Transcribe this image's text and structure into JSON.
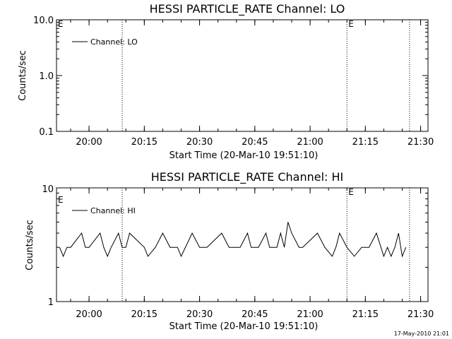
{
  "footer_timestamp": "17-May-2010 21:01",
  "x_ticks": [
    "20:00",
    "20:15",
    "20:30",
    "20:45",
    "21:00",
    "21:15",
    "21:30"
  ],
  "chart_data": [
    {
      "type": "line",
      "title": "HESSI PARTICLE_RATE Channel: LO",
      "xlabel": "Start Time (20-Mar-10 19:51:10)",
      "ylabel": "Counts/sec",
      "y_scale": "log",
      "ylim": [
        0.1,
        10.0
      ],
      "y_ticks": [
        "10.0",
        "1.0",
        "0.1"
      ],
      "x_range": [
        "19:51:10",
        "21:32:00"
      ],
      "legend": "top-left",
      "series": [
        {
          "name": "Channel: LO",
          "x": [],
          "values": []
        }
      ],
      "event_lines": [
        {
          "time": "20:09",
          "label": ""
        },
        {
          "time": "21:10",
          "label": "E"
        },
        {
          "time": "21:27",
          "label": ""
        }
      ],
      "edge_label": "E"
    },
    {
      "type": "line",
      "title": "HESSI PARTICLE_RATE Channel: HI",
      "xlabel": "Start Time (20-Mar-10 19:51:10)",
      "ylabel": "Counts/sec",
      "y_scale": "log",
      "ylim": [
        1,
        10
      ],
      "y_ticks": [
        "10",
        "1"
      ],
      "x_range": [
        "19:51:10",
        "21:32:00"
      ],
      "legend": "top-left",
      "series": [
        {
          "name": "Channel: HI",
          "x": [
            "19:52",
            "19:53",
            "19:54",
            "19:55",
            "19:58",
            "19:59",
            "20:00",
            "20:03",
            "20:04",
            "20:05",
            "20:06",
            "20:08",
            "20:09",
            "20:10",
            "20:11",
            "20:15",
            "20:16",
            "20:18",
            "20:20",
            "20:22",
            "20:24",
            "20:25",
            "20:28",
            "20:30",
            "20:32",
            "20:36",
            "20:38",
            "20:41",
            "20:43",
            "20:44",
            "20:46",
            "20:48",
            "20:49",
            "20:51",
            "20:52",
            "20:53",
            "20:54",
            "20:55",
            "20:57",
            "20:58",
            "21:02",
            "21:04",
            "21:06",
            "21:07",
            "21:08",
            "21:10",
            "21:12",
            "21:14",
            "21:16",
            "21:18",
            "21:20",
            "21:21",
            "21:22",
            "21:23",
            "21:24",
            "21:25",
            "21:26"
          ],
          "values": [
            3,
            2.5,
            3,
            3,
            4,
            3,
            3,
            4,
            3,
            2.5,
            3,
            4,
            3,
            3,
            4,
            3,
            2.5,
            3,
            4,
            3,
            3,
            2.5,
            4,
            3,
            3,
            4,
            3,
            3,
            4,
            3,
            3,
            4,
            3,
            3,
            4,
            3,
            5,
            4,
            3,
            3,
            4,
            3,
            2.5,
            3,
            4,
            3,
            2.5,
            3,
            3,
            4,
            2.5,
            3,
            2.5,
            3,
            4,
            2.5,
            3
          ]
        }
      ],
      "event_lines": [
        {
          "time": "20:09",
          "label": ""
        },
        {
          "time": "21:10",
          "label": "E"
        },
        {
          "time": "21:27",
          "label": ""
        }
      ],
      "edge_label": "E"
    }
  ]
}
